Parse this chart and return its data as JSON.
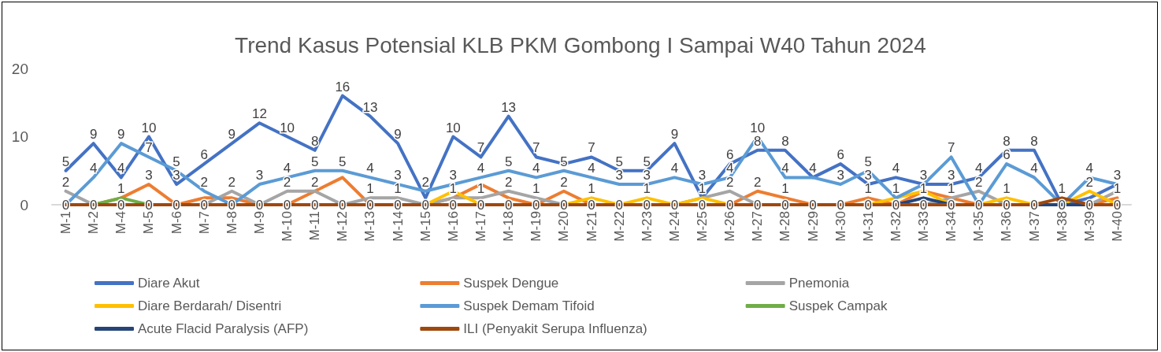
{
  "chart_data": {
    "type": "line",
    "title": "Trend Kasus Potensial KLB PKM Gombong I Sampai W40 Tahun 2024",
    "categories": [
      "M-1",
      "M-2",
      "M-4",
      "M-5",
      "M-6",
      "M-7",
      "M-8",
      "M-9",
      "M-10",
      "M-11",
      "M-12",
      "M-13",
      "M-14",
      "M-15",
      "M-16",
      "M-17",
      "M-18",
      "M-19",
      "M-20",
      "M-21",
      "M-22",
      "M-23",
      "M-24",
      "M-25",
      "M-26",
      "M-27",
      "M-28",
      "M-29",
      "M-30",
      "M-31",
      "M-32",
      "M-33",
      "M-34",
      "M-35",
      "M-36",
      "M-37",
      "M-38",
      "M-39",
      "M-40"
    ],
    "series": [
      {
        "name": "Diare Akut",
        "color": "#4472c4",
        "values": [
          5,
          9,
          4,
          10,
          3,
          6,
          9,
          12,
          10,
          8,
          16,
          13,
          9,
          1,
          10,
          7,
          13,
          7,
          6,
          7,
          5,
          5,
          9,
          1,
          6,
          8,
          8,
          4,
          6,
          3,
          4,
          3,
          3,
          4,
          8,
          8,
          0,
          1,
          3
        ],
        "value_labels": [
          "5",
          "9",
          "4",
          "10",
          "3",
          "6",
          "9",
          "12",
          "10",
          "8",
          "16",
          "13",
          "9",
          null,
          "10",
          "7",
          "13",
          "7",
          null,
          "7",
          "5",
          "5",
          "9",
          null,
          "6",
          "8",
          "8",
          null,
          "6",
          "3",
          "4",
          null,
          "3",
          "4",
          "8",
          "8",
          null,
          null,
          null
        ]
      },
      {
        "name": "Suspek Dengue",
        "color": "#ed7d31",
        "values": [
          null,
          0,
          1,
          3,
          0,
          1,
          1,
          0,
          0,
          2,
          4,
          0,
          null,
          0,
          1,
          3,
          1,
          0,
          2,
          0,
          null,
          null,
          null,
          null,
          0,
          2,
          1,
          0,
          0,
          1,
          0,
          2,
          1,
          0,
          null,
          null,
          null,
          0,
          1
        ],
        "value_labels": [
          null,
          null,
          null,
          "3",
          null,
          null,
          null,
          null,
          null,
          null,
          null,
          null,
          null,
          null,
          null,
          null,
          null,
          null,
          "2",
          null,
          null,
          null,
          null,
          null,
          null,
          "2",
          "1",
          null,
          null,
          "1",
          null,
          null,
          null,
          null,
          null,
          null,
          null,
          null,
          "1"
        ]
      },
      {
        "name": "Pnemonia",
        "color": "#a5a5a5",
        "values": [
          2,
          0,
          null,
          null,
          null,
          0,
          2,
          0,
          2,
          2,
          0,
          1,
          1,
          0,
          1,
          1,
          2,
          1,
          0,
          null,
          null,
          null,
          0,
          1,
          2,
          0,
          null,
          null,
          null,
          null,
          null,
          0,
          1,
          2,
          0,
          null,
          null,
          0,
          2
        ],
        "value_labels": [
          "2",
          null,
          null,
          null,
          null,
          null,
          "2",
          null,
          "2",
          "2",
          null,
          "1",
          "1",
          null,
          "1",
          "1",
          "2",
          "1",
          null,
          null,
          null,
          null,
          null,
          null,
          "2",
          null,
          null,
          null,
          null,
          null,
          null,
          null,
          "1",
          "2",
          null,
          null,
          null,
          null,
          null
        ]
      },
      {
        "name": "Diare Berdarah/ Disentri",
        "color": "#ffc000",
        "values": [
          null,
          null,
          null,
          null,
          null,
          null,
          null,
          null,
          null,
          null,
          null,
          null,
          null,
          0,
          2,
          0,
          null,
          null,
          0,
          1,
          0,
          1,
          0,
          1,
          0,
          null,
          null,
          null,
          null,
          0,
          1,
          2,
          0,
          0,
          1,
          0,
          0,
          2,
          0
        ],
        "value_labels": [
          null,
          null,
          null,
          null,
          null,
          null,
          null,
          null,
          null,
          null,
          null,
          null,
          null,
          null,
          null,
          null,
          null,
          null,
          null,
          "1",
          null,
          "1",
          null,
          "1",
          null,
          null,
          null,
          null,
          null,
          null,
          null,
          null,
          null,
          null,
          "1",
          null,
          null,
          "2",
          null
        ]
      },
      {
        "name": "Suspek Demam Tifoid",
        "color": "#5b9bd5",
        "values": [
          0,
          4,
          9,
          7,
          5,
          2,
          0,
          3,
          4,
          5,
          5,
          4,
          3,
          2,
          3,
          4,
          5,
          4,
          5,
          4,
          3,
          3,
          4,
          3,
          4,
          10,
          4,
          4,
          3,
          5,
          1,
          3,
          7,
          0,
          6,
          4,
          0,
          4,
          3
        ],
        "value_labels": [
          null,
          "4",
          "9",
          "7",
          "5",
          "2",
          null,
          "3",
          "4",
          "5",
          "5",
          "4",
          "3",
          "2",
          "3",
          "4",
          "5",
          "4",
          "5",
          "4",
          "3",
          "3",
          "4",
          "3",
          "4",
          "10",
          "4",
          "4",
          "3",
          "5",
          "1",
          "3",
          "7",
          null,
          "6",
          "4",
          null,
          "4",
          "3"
        ]
      },
      {
        "name": "Suspek Campak",
        "color": "#70ad47",
        "values": [
          null,
          0,
          1,
          0,
          null,
          null,
          null,
          null,
          null,
          null,
          null,
          null,
          null,
          null,
          null,
          null,
          null,
          null,
          null,
          null,
          null,
          null,
          null,
          null,
          null,
          null,
          null,
          null,
          null,
          null,
          null,
          null,
          null,
          null,
          null,
          null,
          null,
          null,
          null
        ],
        "value_labels": [
          null,
          null,
          "1",
          null,
          null,
          null,
          null,
          null,
          null,
          null,
          null,
          null,
          null,
          null,
          null,
          null,
          null,
          null,
          null,
          null,
          null,
          null,
          null,
          null,
          null,
          null,
          null,
          null,
          null,
          null,
          null,
          null,
          null,
          null,
          null,
          null,
          null,
          null,
          null
        ]
      },
      {
        "name": "Acute Flacid Paralysis (AFP)",
        "color": "#264478",
        "values": [
          null,
          null,
          null,
          null,
          null,
          null,
          null,
          null,
          null,
          null,
          null,
          null,
          null,
          null,
          null,
          null,
          null,
          null,
          null,
          null,
          null,
          null,
          null,
          null,
          null,
          null,
          null,
          null,
          null,
          null,
          0,
          1,
          0,
          null,
          null,
          0,
          0,
          0,
          null
        ],
        "value_labels": [
          null,
          null,
          null,
          null,
          null,
          null,
          null,
          null,
          null,
          null,
          null,
          null,
          null,
          null,
          null,
          null,
          null,
          null,
          null,
          null,
          null,
          null,
          null,
          null,
          null,
          null,
          null,
          null,
          null,
          null,
          null,
          "1",
          null,
          null,
          null,
          null,
          "0",
          null,
          null
        ]
      },
      {
        "name": "ILI (Penyakit Serupa Influenza)",
        "color": "#9e480e",
        "values": [
          0,
          0,
          0,
          0,
          0,
          0,
          0,
          0,
          0,
          0,
          0,
          0,
          0,
          0,
          0,
          0,
          0,
          0,
          0,
          0,
          0,
          0,
          0,
          0,
          0,
          0,
          0,
          0,
          0,
          0,
          0,
          0,
          0,
          0,
          0,
          0,
          1,
          0,
          0
        ],
        "value_labels": [
          "0",
          "0",
          "0",
          "0",
          "0",
          "0",
          "0",
          "0",
          "0",
          "0",
          "0",
          "0",
          "0",
          "0",
          "0",
          "0",
          "0",
          "0",
          "0",
          "0",
          "0",
          "0",
          "0",
          "0",
          "0",
          "0",
          "0",
          "0",
          "0",
          "0",
          "0",
          "0",
          "0",
          "0",
          "0",
          "0",
          "1",
          "0",
          "0"
        ]
      }
    ],
    "ylim": [
      0,
      20
    ],
    "yticks": [
      0,
      10,
      20
    ],
    "grid": false,
    "legend": "bottom",
    "marker": "none",
    "line_style": "solid"
  }
}
